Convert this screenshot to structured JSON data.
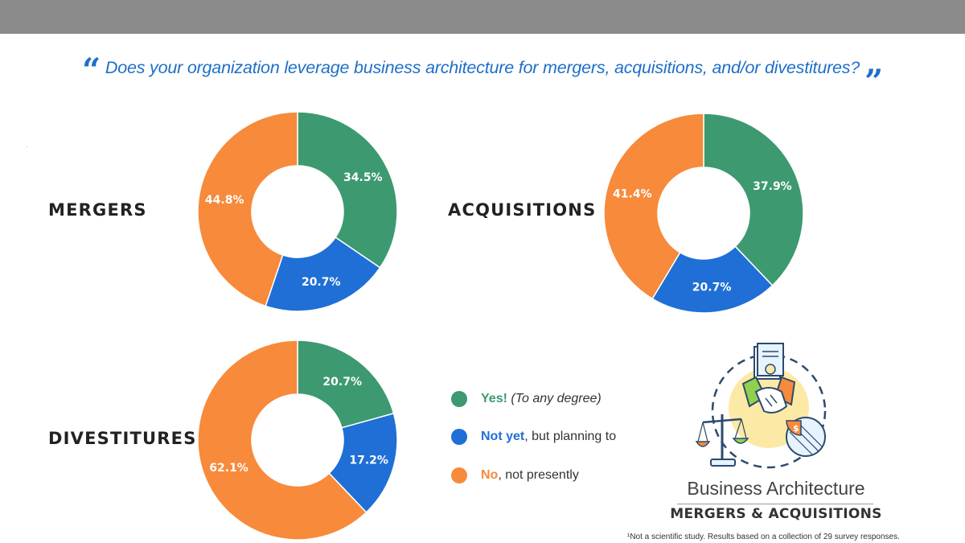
{
  "question": {
    "open_mark": "“",
    "text": "Does your organization leverage business architecture for mergers, acquisitions, and/or divestitures?",
    "close_mark": "”"
  },
  "colors": {
    "yes": "#3d9970",
    "not_yet": "#1f6fd6",
    "no": "#f78a3b"
  },
  "legend": {
    "yes": {
      "lead": "Yes!",
      "rest": "(To any degree)"
    },
    "not_yet": {
      "lead": "Not yet",
      "rest": ", but planning to"
    },
    "no": {
      "lead": "No",
      "rest": ", not presently"
    }
  },
  "chart_data": [
    {
      "type": "pie",
      "title": "MERGERS",
      "categories": [
        "Yes!",
        "Not yet",
        "No"
      ],
      "values": [
        34.5,
        20.7,
        44.8
      ],
      "labels": [
        "34.5%",
        "20.7%",
        "44.8%"
      ]
    },
    {
      "type": "pie",
      "title": "ACQUISITIONS",
      "categories": [
        "Yes!",
        "Not yet",
        "No"
      ],
      "values": [
        37.9,
        20.7,
        41.4
      ],
      "labels": [
        "37.9%",
        "20.7%",
        "41.4%"
      ]
    },
    {
      "type": "pie",
      "title": "DIVESTITURES",
      "categories": [
        "Yes!",
        "Not yet",
        "No"
      ],
      "values": [
        20.7,
        17.2,
        62.1
      ],
      "labels": [
        "20.7%",
        "17.2%",
        "62.1%"
      ]
    }
  ],
  "brand": {
    "line1": "Business Architecture",
    "line2": "MERGERS & ACQUISITIONS"
  },
  "footnote": "¹Not a scientific study. Results based on a collection of 29 survey responses."
}
